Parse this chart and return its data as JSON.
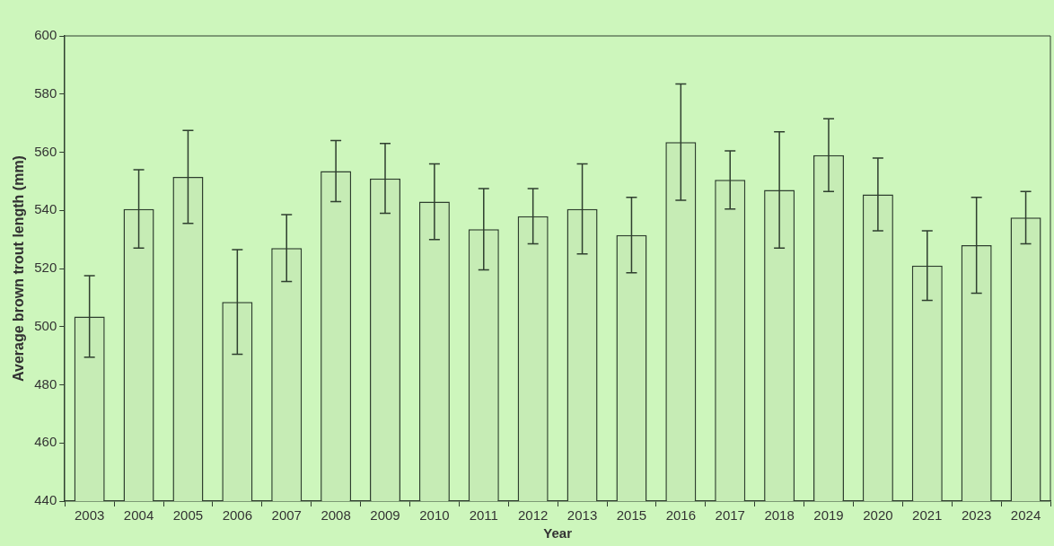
{
  "chart_data": {
    "type": "bar",
    "xlabel": "Year",
    "ylabel": "Average brown trout length (mm)",
    "categories": [
      "2003",
      "2004",
      "2005",
      "2006",
      "2007",
      "2008",
      "2009",
      "2010",
      "2011",
      "2012",
      "2013",
      "2015",
      "2016",
      "2017",
      "2018",
      "2019",
      "2020",
      "2021",
      "2023",
      "2024"
    ],
    "values": [
      503.5,
      540.5,
      551.5,
      508.5,
      527,
      553.5,
      551,
      543,
      533.5,
      538,
      540.5,
      531.5,
      563.5,
      550.5,
      547,
      559,
      545.5,
      521,
      528,
      537.5
    ],
    "errors": [
      14,
      13.5,
      16,
      18,
      11.5,
      10.5,
      12,
      13,
      14,
      9.5,
      15.5,
      13,
      20,
      10,
      20,
      12.5,
      12.5,
      12,
      16.5,
      9
    ],
    "color": "#c6ecb5",
    "ylim": [
      440,
      600
    ],
    "yticks": [
      440,
      460,
      480,
      500,
      520,
      540,
      560,
      580,
      600
    ],
    "legend": false
  }
}
